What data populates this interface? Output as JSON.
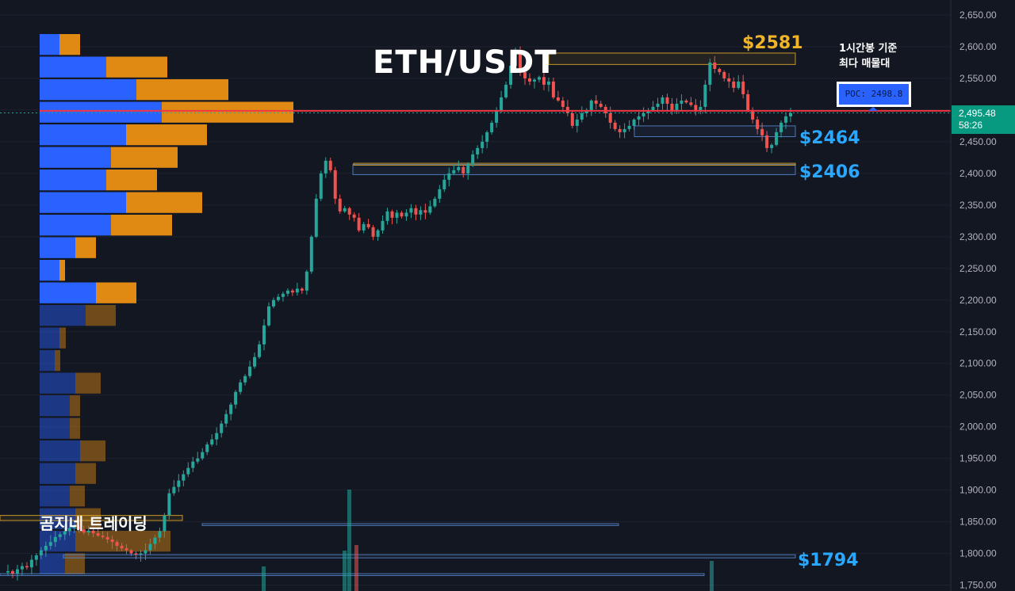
{
  "title": "ETH/USDT",
  "levels": {
    "resistance": "$2581",
    "support_1": "$2464",
    "support_2": "$2406",
    "support_3": "$1794"
  },
  "note": {
    "line1": "1시간봉 기준",
    "line2": "최다 매물대"
  },
  "poc_label": "POC: 2498.8",
  "current_price": {
    "price": "2,495.48",
    "countdown": "58:26"
  },
  "brand": "곰지네 트레이딩",
  "colors": {
    "up": "#26a69a",
    "down": "#ef5350",
    "poc_line": "#f23645",
    "vp_buy": "#2962ff",
    "vp_sell": "#e08a14",
    "gold": "#f0b429",
    "blue": "#2aa8ff"
  },
  "chart_data": {
    "type": "candlestick",
    "title": "ETH/USDT",
    "timeframe": "1시간봉",
    "ylim": [
      1745,
      2660
    ],
    "y_ticks": [
      "2,650.00",
      "2,600.00",
      "2,550.00",
      "2,500.00",
      "2,450.00",
      "2,400.00",
      "2,350.00",
      "2,300.00",
      "2,250.00",
      "2,200.00",
      "2,150.00",
      "2,100.00",
      "2,050.00",
      "2,000.00",
      "1,950.00",
      "1,900.00",
      "1,850.00",
      "1,800.00",
      "1,750.00"
    ],
    "y_tick_values": [
      2650,
      2600,
      2550,
      2500,
      2450,
      2400,
      2350,
      2300,
      2250,
      2200,
      2150,
      2100,
      2050,
      2000,
      1950,
      1900,
      1850,
      1800,
      1750
    ],
    "poc": 2498.8,
    "current_price": 2495.48,
    "key_levels": [
      2581,
      2464,
      2406,
      1794
    ],
    "price_path": [
      1770,
      1772,
      1768,
      1775,
      1780,
      1778,
      1790,
      1797,
      1805,
      1812,
      1818,
      1826,
      1830,
      1835,
      1840,
      1842,
      1838,
      1833,
      1836,
      1832,
      1828,
      1826,
      1822,
      1818,
      1812,
      1808,
      1805,
      1800,
      1798,
      1800,
      1805,
      1815,
      1825,
      1835,
      1860,
      1895,
      1905,
      1915,
      1925,
      1935,
      1945,
      1950,
      1960,
      1972,
      1980,
      1990,
      2005,
      2020,
      2035,
      2055,
      2070,
      2080,
      2095,
      2110,
      2130,
      2160,
      2190,
      2200,
      2205,
      2210,
      2215,
      2212,
      2218,
      2215,
      2245,
      2300,
      2360,
      2400,
      2420,
      2405,
      2360,
      2340,
      2345,
      2335,
      2330,
      2310,
      2320,
      2315,
      2300,
      2310,
      2325,
      2340,
      2330,
      2338,
      2332,
      2338,
      2345,
      2335,
      2342,
      2338,
      2348,
      2360,
      2375,
      2390,
      2400,
      2405,
      2410,
      2400,
      2415,
      2430,
      2440,
      2450,
      2465,
      2480,
      2498,
      2520,
      2540,
      2570,
      2590,
      2560,
      2550,
      2545,
      2548,
      2552,
      2540,
      2545,
      2520,
      2515,
      2505,
      2495,
      2475,
      2485,
      2495,
      2500,
      2515,
      2510,
      2505,
      2495,
      2480,
      2470,
      2465,
      2470,
      2475,
      2485,
      2490,
      2495,
      2500,
      2505,
      2510,
      2520,
      2510,
      2500,
      2510,
      2515,
      2512,
      2508,
      2500,
      2505,
      2540,
      2575,
      2565,
      2560,
      2550,
      2545,
      2535,
      2545,
      2525,
      2500,
      2485,
      2470,
      2460,
      2440,
      2445,
      2465,
      2480,
      2490,
      2495
    ],
    "volume_profile": [
      {
        "buy": 25,
        "sell": 26
      },
      {
        "buy": 84,
        "sell": 77
      },
      {
        "buy": 122,
        "sell": 116
      },
      {
        "buy": 154,
        "sell": 166
      },
      {
        "buy": 109,
        "sell": 102
      },
      {
        "buy": 90,
        "sell": 84
      },
      {
        "buy": 84,
        "sell": 64
      },
      {
        "buy": 109,
        "sell": 96
      },
      {
        "buy": 90,
        "sell": 77
      },
      {
        "buy": 45,
        "sell": 26
      },
      {
        "buy": 25,
        "sell": 7
      },
      {
        "buy": 71,
        "sell": 51
      },
      {
        "buy": 58,
        "sell": 38
      },
      {
        "buy": 25,
        "sell": 8
      },
      {
        "buy": 19,
        "sell": 7
      },
      {
        "buy": 45,
        "sell": 32
      },
      {
        "buy": 38,
        "sell": 13
      },
      {
        "buy": 38,
        "sell": 13
      },
      {
        "buy": 51,
        "sell": 32
      },
      {
        "buy": 45,
        "sell": 26
      },
      {
        "buy": 38,
        "sell": 19
      },
      {
        "buy": 45,
        "sell": 32
      },
      {
        "buy": 45,
        "sell": 120
      },
      {
        "buy": 32,
        "sell": 25
      }
    ]
  }
}
